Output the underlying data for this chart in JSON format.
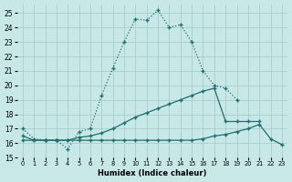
{
  "bg_color": "#c8e8e8",
  "grid_color": "#a8cccc",
  "line_color": "#1e6e6e",
  "xlabel": "Humidex (Indice chaleur)",
  "xlim": [
    -0.5,
    23.5
  ],
  "ylim": [
    15,
    25.6
  ],
  "yticks": [
    15,
    16,
    17,
    18,
    19,
    20,
    21,
    22,
    23,
    24,
    25
  ],
  "xticks": [
    0,
    1,
    2,
    3,
    4,
    5,
    6,
    7,
    8,
    9,
    10,
    11,
    12,
    13,
    14,
    15,
    16,
    17,
    18,
    19,
    20,
    21,
    22,
    23
  ],
  "curves": [
    {
      "x": [
        0,
        1,
        2,
        3,
        4,
        5,
        6,
        7,
        8,
        9,
        10,
        11,
        12,
        13,
        14,
        15,
        16,
        17,
        18,
        19
      ],
      "y": [
        17.0,
        16.3,
        16.2,
        16.2,
        15.6,
        16.8,
        17.0,
        19.3,
        21.2,
        23.0,
        24.6,
        24.5,
        25.2,
        24.0,
        24.2,
        23.0,
        21.0,
        20.0,
        19.8,
        19.0
      ],
      "style": "dotted"
    },
    {
      "x": [
        0,
        1,
        2,
        3,
        4,
        5,
        6,
        7,
        8,
        9,
        10,
        11,
        12,
        13,
        14,
        15,
        16,
        17,
        18,
        19,
        20,
        21
      ],
      "y": [
        16.5,
        16.2,
        16.2,
        16.2,
        16.2,
        16.4,
        16.5,
        16.7,
        17.0,
        17.4,
        17.8,
        18.1,
        18.4,
        18.7,
        19.0,
        19.3,
        19.6,
        19.8,
        17.5,
        17.5,
        17.5,
        17.5
      ],
      "style": "solid"
    },
    {
      "x": [
        0,
        1,
        2,
        3,
        4,
        5,
        6,
        7,
        8,
        9,
        10,
        11,
        12,
        13,
        14,
        15,
        16,
        17,
        18,
        19,
        20,
        21,
        22,
        23
      ],
      "y": [
        16.2,
        16.2,
        16.2,
        16.2,
        16.2,
        16.2,
        16.2,
        16.2,
        16.2,
        16.2,
        16.2,
        16.2,
        16.2,
        16.2,
        16.2,
        16.2,
        16.3,
        16.5,
        16.6,
        16.8,
        17.0,
        17.3,
        16.3,
        15.9
      ],
      "style": "solid"
    }
  ]
}
